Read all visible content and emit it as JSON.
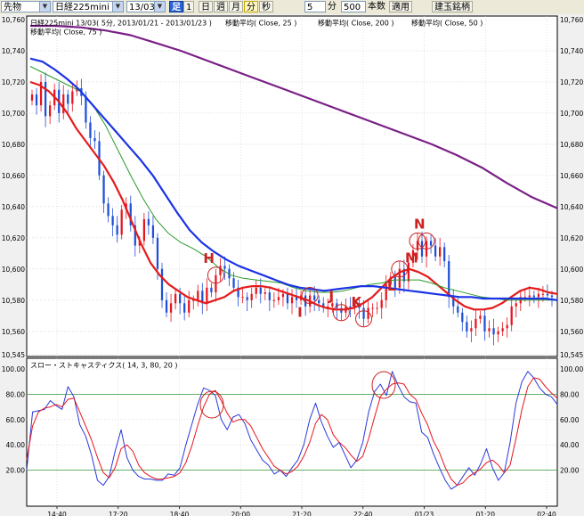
{
  "toolbar": {
    "category_select": "先物",
    "instrument_select": "日経225mini",
    "contract_select": "13/03",
    "foot_label": "足",
    "interval_buttons": [
      "1",
      "日",
      "週",
      "月",
      "分",
      "秒"
    ],
    "active_interval": "分",
    "minutes_value": "5",
    "minutes_unit": "分",
    "bars_value": "500",
    "bars_unit": "本数",
    "apply_button": "適用",
    "symbols_button": "建玉銘柄"
  },
  "price_panel": {
    "title": "日経225mini 13/03( 5分, 2013/01/21 - 2013/01/23 )",
    "legend": [
      "移動平均( Close, 25 )",
      "移動平均( Close, 200 )",
      "移動平均( Close, 50 )",
      "移動平均( Close, 75 )"
    ]
  },
  "stoch_panel": {
    "title": "スロー・ストキャスティクス( 14, 3, 80, 20 )"
  },
  "colors": {
    "up_candle": "#e8141e",
    "down_candle": "#1f4fd6",
    "ma25": "#e51b1b",
    "ma50": "#2a9a2a",
    "ma75": "#1b33e6",
    "ma200": "#7a1f86",
    "k_line": "#2a3ad8",
    "d_line": "#e8141e",
    "annotation": "#cc2222"
  },
  "chart_data": [
    {
      "type": "candlestick",
      "title": "日経225mini 13/03( 5分, 2013/01/21 - 2013/01/23 )",
      "xlabel": "",
      "ylabel": "",
      "ylim": [
        10545,
        10760
      ],
      "yticks": [
        10760,
        10740,
        10720,
        10700,
        10680,
        10660,
        10640,
        10620,
        10600,
        10580,
        10560,
        10545
      ],
      "xticks": [
        "14:40",
        "17:20",
        "18:40",
        "20:00",
        "21:20",
        "22:40",
        "01/23",
        "01:20",
        "02:40"
      ],
      "bar_count": 117,
      "grid": true,
      "closes": [
        10712,
        10705,
        10720,
        10698,
        10705,
        10715,
        10700,
        10712,
        10706,
        10714,
        10716,
        10711,
        10694,
        10684,
        10682,
        10660,
        10642,
        10634,
        10628,
        10622,
        10638,
        10642,
        10628,
        10615,
        10618,
        10632,
        10628,
        10620,
        10600,
        10580,
        10572,
        10578,
        10584,
        10578,
        10572,
        10580,
        10580,
        10586,
        10578,
        10588,
        10585,
        10596,
        10602,
        10600,
        10594,
        10588,
        10582,
        10582,
        10580,
        10584,
        10588,
        10584,
        10585,
        10580,
        10580,
        10582,
        10584,
        10578,
        10582,
        10580,
        10583,
        10576,
        10583,
        10580,
        10578,
        10575,
        10576,
        10578,
        10575,
        10572,
        10576,
        10575,
        10578,
        10575,
        10568,
        10575,
        10575,
        10575,
        10580,
        10590,
        10595,
        10588,
        10600,
        10592,
        10604,
        10612,
        10618,
        10608,
        10618,
        10615,
        10608,
        10614,
        10605,
        10582,
        10576,
        10572,
        10566,
        10560,
        10562,
        10568,
        10570,
        10560,
        10562,
        10558,
        10560,
        10562,
        10564,
        10576,
        10578,
        10582,
        10582,
        10583,
        10582,
        10584,
        10584,
        10583,
        10582
      ],
      "series": [
        {
          "name": "移動平均( Close, 25 )",
          "values": [
            10720,
            10718,
            10714,
            10708,
            10700,
            10690,
            10682,
            10674,
            10666,
            10656,
            10644,
            10630,
            10616,
            10604,
            10596,
            10590,
            10586,
            10582,
            10580,
            10578,
            10580,
            10582,
            10586,
            10588,
            10589,
            10589,
            10588,
            10586,
            10584,
            10582,
            10580,
            10577,
            10575,
            10574,
            10574,
            10575,
            10578,
            10582,
            10588,
            10594,
            10598,
            10600,
            10598,
            10595,
            10590,
            10585,
            10580,
            10576,
            10574,
            10574,
            10575,
            10578,
            10582,
            10586,
            10588,
            10587,
            10585,
            10584
          ]
        },
        {
          "name": "移動平均( Close, 50 )",
          "values": [
            10730,
            10726,
            10722,
            10718,
            10714,
            10705,
            10692,
            10676,
            10660,
            10645,
            10632,
            10623,
            10617,
            10613,
            10608,
            10601,
            10596,
            10594,
            10593,
            10592,
            10591,
            10588,
            10586,
            10585,
            10585,
            10586,
            10588,
            10590,
            10591,
            10593,
            10593,
            10593,
            10591,
            10588,
            10586,
            10584,
            10582,
            10581,
            10580,
            10580,
            10580,
            10580,
            10580
          ]
        },
        {
          "name": "移動平均( Close, 75 )",
          "values": [
            10735,
            10733,
            10728,
            10722,
            10715,
            10706,
            10697,
            10688,
            10679,
            10670,
            10660,
            10648,
            10636,
            10625,
            10617,
            10611,
            10606,
            10602,
            10599,
            10596,
            10593,
            10590,
            10588,
            10587,
            10586,
            10587,
            10588,
            10589,
            10589,
            10588,
            10587,
            10586,
            10585,
            10584,
            10583,
            10582,
            10582,
            10581,
            10581,
            10581,
            10581,
            10581,
            10581,
            10580
          ]
        },
        {
          "name": "移動平均( Close, 200 )",
          "values": [
            10756,
            10756,
            10755,
            10753,
            10750,
            10745,
            10740,
            10734,
            10728,
            10722,
            10716,
            10710,
            10704,
            10698,
            10692,
            10686,
            10680,
            10673,
            10665,
            10655,
            10646,
            10639
          ]
        }
      ],
      "annotations": [
        {
          "label": "H",
          "bar": 41
        },
        {
          "label": "I",
          "bar": 62
        },
        {
          "label": "J",
          "bar": 69
        },
        {
          "label": "K",
          "bar": 74
        },
        {
          "label": "L",
          "bar": 82
        },
        {
          "label": "M",
          "bar": 86
        },
        {
          "label": "N",
          "bar": 88
        }
      ]
    },
    {
      "type": "line",
      "title": "スロー・ストキャスティクス( 14, 3, 80, 20 )",
      "xlabel": "",
      "ylabel": "",
      "ylim": [
        0,
        100
      ],
      "yticks": [
        100,
        80,
        60,
        40,
        20
      ],
      "reference_lines": [
        80,
        20
      ],
      "grid": true,
      "series": [
        {
          "name": "%K",
          "values": [
            20,
            66,
            67,
            68,
            75,
            71,
            68,
            86,
            78,
            56,
            47,
            32,
            12,
            8,
            15,
            35,
            52,
            30,
            20,
            15,
            13,
            13,
            12,
            12,
            17,
            16,
            22,
            40,
            56,
            72,
            85,
            83,
            79,
            60,
            52,
            62,
            64,
            57,
            44,
            36,
            28,
            24,
            17,
            20,
            15,
            22,
            28,
            40,
            60,
            73,
            58,
            47,
            38,
            42,
            32,
            22,
            28,
            42,
            66,
            82,
            88,
            79,
            98,
            87,
            78,
            74,
            73,
            50,
            46,
            33,
            22,
            12,
            5,
            8,
            15,
            22,
            16,
            25,
            37,
            22,
            12,
            18,
            42,
            73,
            90,
            98,
            93,
            85,
            80,
            78,
            72
          ]
        },
        {
          "name": "%D",
          "values": [
            28,
            55,
            66,
            69,
            70,
            72,
            70,
            76,
            77,
            66,
            55,
            44,
            30,
            18,
            14,
            22,
            37,
            40,
            35,
            24,
            18,
            15,
            13,
            13,
            14,
            15,
            18,
            26,
            39,
            55,
            70,
            80,
            83,
            75,
            65,
            58,
            60,
            60,
            55,
            46,
            37,
            30,
            23,
            20,
            17,
            19,
            23,
            31,
            42,
            57,
            64,
            60,
            48,
            42,
            38,
            32,
            27,
            31,
            45,
            62,
            78,
            84,
            88,
            89,
            88,
            80,
            76,
            65,
            56,
            43,
            34,
            22,
            13,
            8,
            10,
            15,
            18,
            21,
            26,
            28,
            24,
            18,
            24,
            45,
            68,
            86,
            93,
            92,
            86,
            81,
            77
          ]
        }
      ]
    }
  ]
}
